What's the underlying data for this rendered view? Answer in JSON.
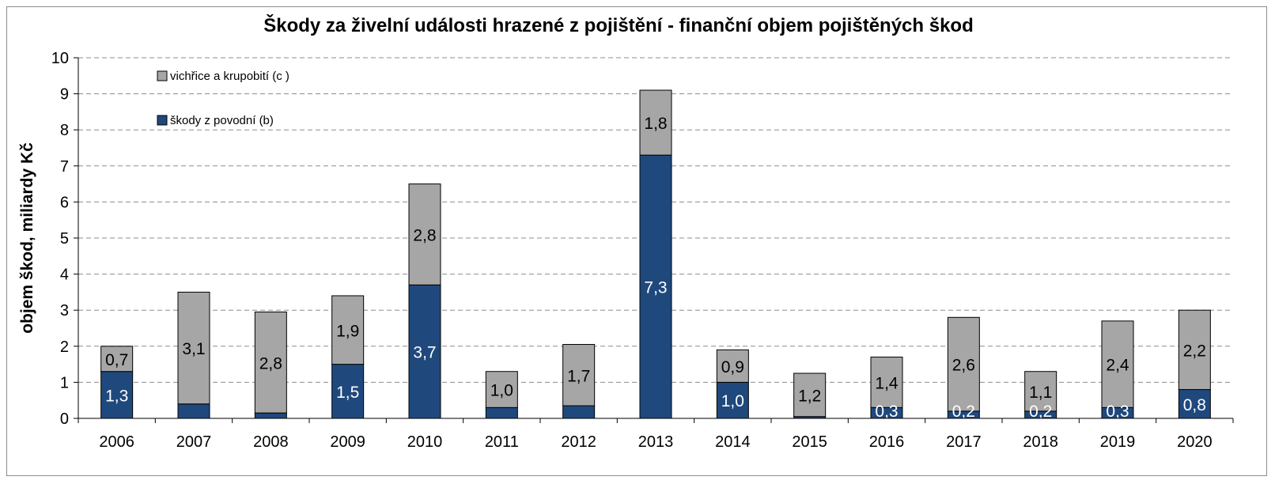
{
  "chart_data": {
    "type": "bar",
    "stacked": true,
    "title": "Škody za živelní události hrazené z pojištění - finanční objem pojištěných škod",
    "xlabel": "",
    "ylabel": "objem škod, miliardy Kč",
    "ylim": [
      0,
      10
    ],
    "yticks": [
      "0",
      "1",
      "2",
      "3",
      "4",
      "5",
      "6",
      "7",
      "8",
      "9",
      "10"
    ],
    "grid": true,
    "legend_position": "top-left",
    "categories": [
      "2006",
      "2007",
      "2008",
      "2009",
      "2010",
      "2011",
      "2012",
      "2013",
      "2014",
      "2015",
      "2016",
      "2017",
      "2018",
      "2019",
      "2020"
    ],
    "series": [
      {
        "name": "škody z povodní (b)",
        "color": "#1f497d",
        "values": [
          1.3,
          0.4,
          0.15,
          1.5,
          3.7,
          0.3,
          0.35,
          7.3,
          1.0,
          0.05,
          0.3,
          0.2,
          0.2,
          0.3,
          0.8
        ],
        "labels": [
          "1,3",
          "",
          "",
          "1,5",
          "3,7",
          "",
          "",
          "7,3",
          "1,0",
          "",
          "0,3",
          "0,2",
          "0,2",
          "0,3",
          "0,8"
        ]
      },
      {
        "name": "vichřice a krupobití (c )",
        "color": "#a6a6a6",
        "values": [
          0.7,
          3.1,
          2.8,
          1.9,
          2.8,
          1.0,
          1.7,
          1.8,
          0.9,
          1.2,
          1.4,
          2.6,
          1.1,
          2.4,
          2.2
        ],
        "labels": [
          "0,7",
          "3,1",
          "2,8",
          "1,9",
          "2,8",
          "1,0",
          "1,7",
          "1,8",
          "0,9",
          "1,2",
          "1,4",
          "2,6",
          "1,1",
          "2,4",
          "2,2"
        ]
      }
    ]
  }
}
